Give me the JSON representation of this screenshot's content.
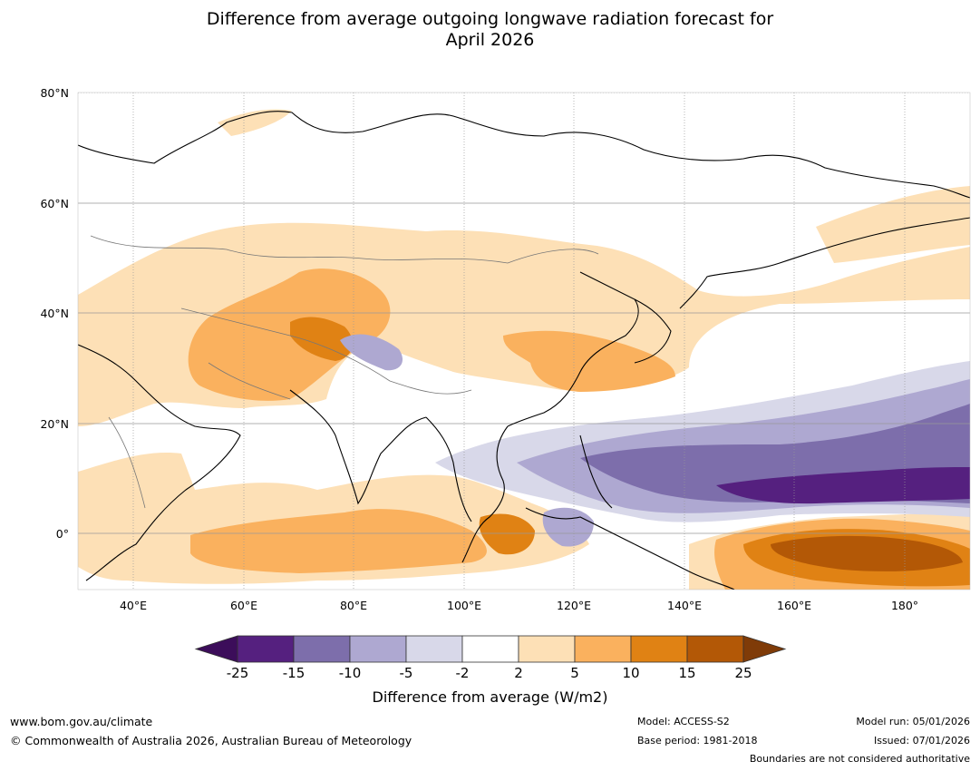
{
  "title_line1": "Difference from average outgoing longwave radiation forecast for",
  "title_line2": "April 2026",
  "map": {
    "lat_labels": [
      "80°N",
      "60°N",
      "40°N",
      "20°N",
      "0°"
    ],
    "lon_labels": [
      "40°E",
      "60°E",
      "80°E",
      "100°E",
      "120°E",
      "140°E",
      "160°E",
      "180°"
    ],
    "extent": {
      "lon_min": 30,
      "lon_max": 192,
      "lat_min": -10,
      "lat_max": 80
    }
  },
  "colorbar": {
    "ticks": [
      "-25",
      "-15",
      "-10",
      "-5",
      "-2",
      "2",
      "5",
      "10",
      "15",
      "25"
    ],
    "colors": [
      "#3c0d5a",
      "#55207f",
      "#7d6eab",
      "#aea8d1",
      "#d8d8e9",
      "#ffffff",
      "#fde0b6",
      "#fab15e",
      "#e08214",
      "#b35806",
      "#7f3b08"
    ],
    "title": "Difference from average (W/m2)"
  },
  "footer": {
    "website": "www.bom.gov.au/climate",
    "copyright": "© Commonwealth of Australia 2026, Australian Bureau of Meteorology",
    "model": "Model: ACCESS-S2",
    "base_period": "Base period: 1981-2018",
    "model_run": "Model run: 05/01/2026",
    "issued": "Issued: 07/01/2026",
    "disclaimer": "Boundaries are not considered authoritative"
  }
}
